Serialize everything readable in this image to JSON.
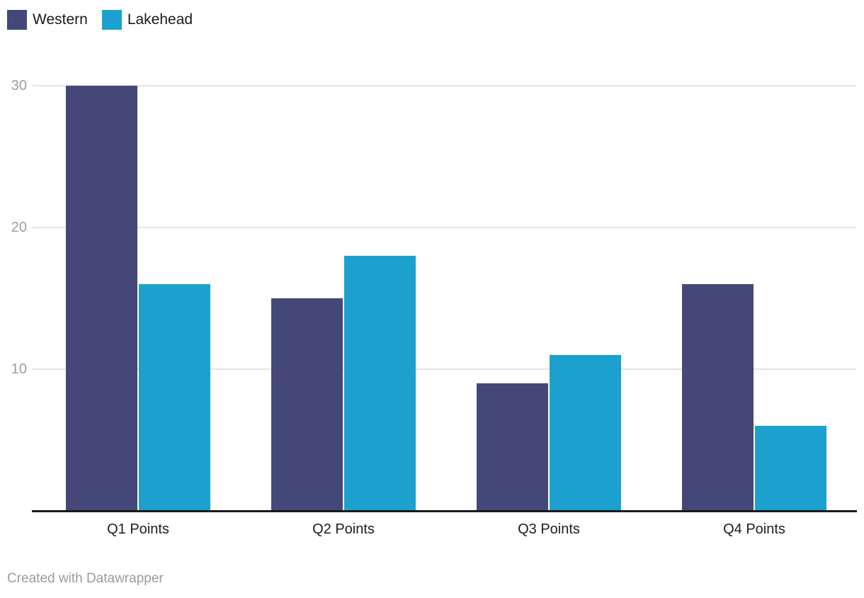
{
  "footer": {
    "credit": "Created with Datawrapper"
  },
  "colors": {
    "western": "#434878",
    "lakehead": "#1ca1ce",
    "gridline": "#e4e4e4",
    "axis_line": "#191919",
    "tick_label": "#9d9d9d",
    "category_label": "#1d1d1d",
    "legend_text": "#1a1a1a",
    "footer_text": "#9b9b9b",
    "background": "#ffffff"
  },
  "chart_data": {
    "type": "bar",
    "title": "",
    "xlabel": "",
    "ylabel": "",
    "categories": [
      "Q1 Points",
      "Q2 Points",
      "Q3 Points",
      "Q4 Points"
    ],
    "series": [
      {
        "name": "Western",
        "color": "#434878",
        "values": [
          30,
          15,
          9,
          16
        ]
      },
      {
        "name": "Lakehead",
        "color": "#1ca1ce",
        "values": [
          16,
          18,
          11,
          6
        ]
      }
    ],
    "yticks": [
      10,
      20,
      30
    ],
    "ylim": [
      0,
      30
    ],
    "grid": true,
    "grouped": true,
    "legend_position": "top-left",
    "credit": "Created with Datawrapper"
  }
}
